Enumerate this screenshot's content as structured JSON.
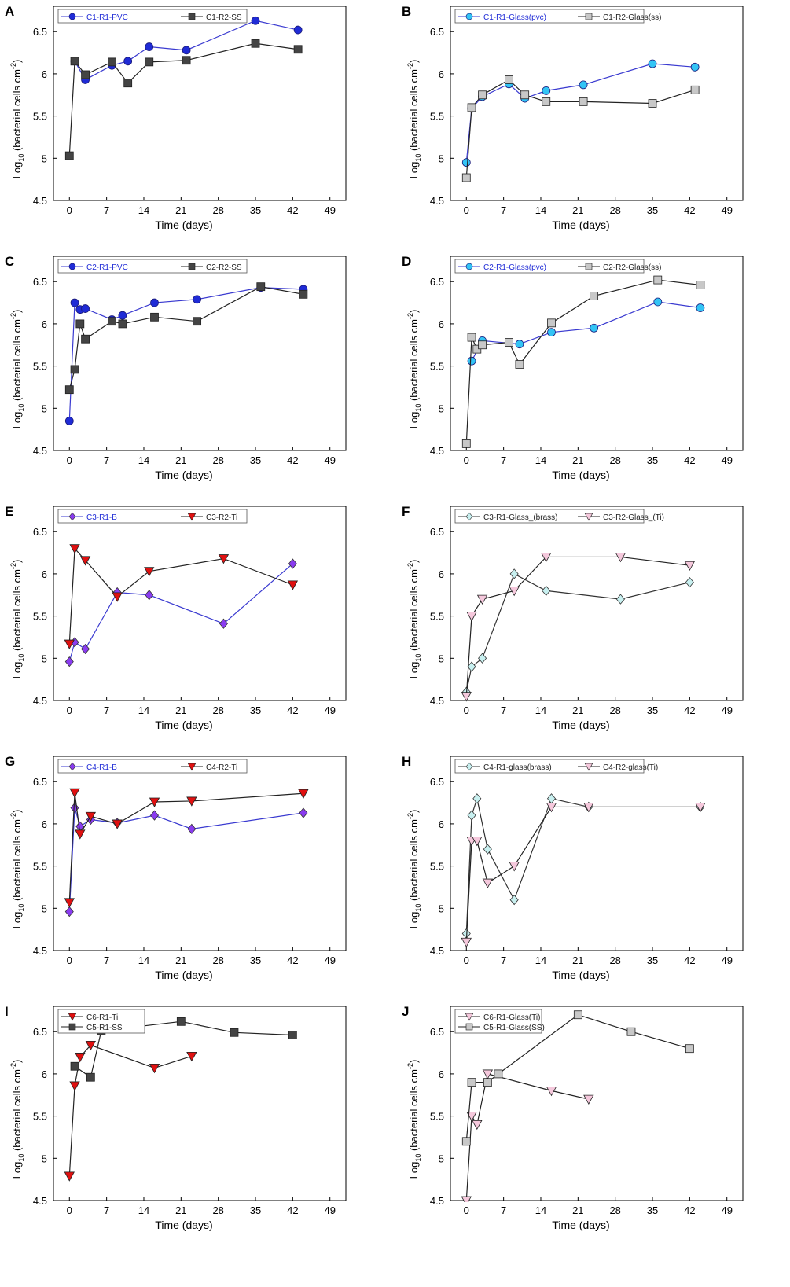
{
  "figure": {
    "axis_defaults": {
      "xlabel": "Time (days)",
      "ylabel_prefix": "Log",
      "ylabel_sub": "10",
      "ylabel_main": " (bacterial cells cm",
      "ylabel_sup": "-2",
      "ylabel_end": ")",
      "xlim": [
        -3,
        52
      ],
      "ylim": [
        4.5,
        6.8
      ],
      "xticks": [
        0,
        7,
        14,
        21,
        28,
        35,
        42,
        49
      ],
      "yticks": [
        4.5,
        5,
        5.5,
        6,
        6.5
      ]
    },
    "colors": {
      "blue_circle": "#1f2bd6",
      "dark_square": "#444444",
      "cyan_circle": "#33c4f5",
      "light_square": "#c8c8c8",
      "purple_diamond": "#8a3cf0",
      "red_triangle": "#e01010",
      "cyan_diamond": "#c8f0f0",
      "pink_triangle": "#f5c8dc",
      "line_blue": "#3a3ad0",
      "line_dark": "#222222"
    }
  },
  "chart_data": [
    {
      "panel": "A",
      "type": "line",
      "title": "",
      "xlabel": "Time (days)",
      "ylabel": "Log10 (bacterial cells cm-2)",
      "xlim": [
        -3,
        52
      ],
      "ylim": [
        4.5,
        6.8
      ],
      "legend_location": "top-left",
      "series": [
        {
          "name": "C1-R1-PVC",
          "marker": "circle",
          "fill": "#1f2bd6",
          "line": "#3a3ad0",
          "legend_color": "#1f2bd6",
          "x": [
            1,
            3,
            8,
            11,
            15,
            22,
            35,
            43
          ],
          "y": [
            6.15,
            5.93,
            6.1,
            6.15,
            6.32,
            6.28,
            6.63,
            6.52
          ]
        },
        {
          "name": "C1-R2-SS",
          "marker": "square",
          "fill": "#444444",
          "line": "#222222",
          "legend_color": "#222222",
          "x": [
            0,
            1,
            3,
            8,
            11,
            15,
            22,
            35,
            43
          ],
          "y": [
            5.03,
            6.15,
            5.99,
            6.14,
            5.89,
            6.14,
            6.16,
            6.36,
            6.29
          ]
        }
      ]
    },
    {
      "panel": "B",
      "type": "line",
      "title": "",
      "xlabel": "Time (days)",
      "ylabel": "Log10 (bacterial cells cm-2)",
      "xlim": [
        -3,
        52
      ],
      "ylim": [
        4.5,
        6.8
      ],
      "legend_location": "top-left",
      "series": [
        {
          "name": "C1-R1-Glass(pvc)",
          "marker": "circle",
          "fill": "#33c4f5",
          "line": "#3a3ad0",
          "legend_color": "#1f2bd6",
          "x": [
            0,
            1,
            3,
            8,
            11,
            15,
            22,
            35,
            43
          ],
          "y": [
            4.95,
            5.59,
            5.73,
            5.88,
            5.71,
            5.8,
            5.87,
            6.12,
            6.08
          ]
        },
        {
          "name": "C1-R2-Glass(ss)",
          "marker": "square",
          "fill": "#c8c8c8",
          "line": "#222222",
          "legend_color": "#222222",
          "x": [
            0,
            1,
            3,
            8,
            11,
            15,
            22,
            35,
            43
          ],
          "y": [
            4.77,
            5.6,
            5.75,
            5.93,
            5.75,
            5.67,
            5.67,
            5.65,
            5.81
          ]
        }
      ]
    },
    {
      "panel": "C",
      "type": "line",
      "title": "",
      "xlabel": "Time (days)",
      "ylabel": "Log10 (bacterial cells cm-2)",
      "xlim": [
        -3,
        52
      ],
      "ylim": [
        4.5,
        6.8
      ],
      "legend_location": "top-left",
      "series": [
        {
          "name": "C2-R1-PVC",
          "marker": "circle",
          "fill": "#1f2bd6",
          "line": "#3a3ad0",
          "legend_color": "#1f2bd6",
          "x": [
            0,
            1,
            2,
            3,
            8,
            10,
            16,
            24,
            36,
            44
          ],
          "y": [
            4.85,
            6.25,
            6.17,
            6.18,
            6.05,
            6.1,
            6.25,
            6.29,
            6.43,
            6.41
          ]
        },
        {
          "name": "C2-R2-SS",
          "marker": "square",
          "fill": "#444444",
          "line": "#222222",
          "legend_color": "#222222",
          "x": [
            0,
            1,
            2,
            3,
            8,
            10,
            16,
            24,
            36,
            44
          ],
          "y": [
            5.22,
            5.46,
            6.0,
            5.82,
            6.03,
            6.0,
            6.08,
            6.03,
            6.44,
            6.35
          ]
        }
      ]
    },
    {
      "panel": "D",
      "type": "line",
      "title": "",
      "xlabel": "Time (days)",
      "ylabel": "Log10 (bacterial cells cm-2)",
      "xlim": [
        -3,
        52
      ],
      "ylim": [
        4.5,
        6.8
      ],
      "legend_location": "top-left",
      "series": [
        {
          "name": "C2-R1-Glass(pvc)",
          "marker": "circle",
          "fill": "#33c4f5",
          "line": "#3a3ad0",
          "legend_color": "#1f2bd6",
          "x": [
            1,
            3,
            10,
            16,
            24,
            36,
            44
          ],
          "y": [
            5.56,
            5.8,
            5.76,
            5.9,
            5.95,
            6.26,
            6.19
          ]
        },
        {
          "name": "C2-R2-Glass(ss)",
          "marker": "square",
          "fill": "#c8c8c8",
          "line": "#222222",
          "legend_color": "#222222",
          "x": [
            0,
            1,
            2,
            3,
            8,
            10,
            16,
            24,
            36,
            44
          ],
          "y": [
            4.58,
            5.84,
            5.7,
            5.75,
            5.78,
            5.52,
            6.01,
            6.33,
            6.52,
            6.46
          ]
        }
      ]
    },
    {
      "panel": "E",
      "type": "line",
      "title": "",
      "xlabel": "Time (days)",
      "ylabel": "Log10 (bacterial cells cm-2)",
      "xlim": [
        -3,
        52
      ],
      "ylim": [
        4.5,
        6.8
      ],
      "legend_location": "top-left",
      "series": [
        {
          "name": "C3-R1-B",
          "marker": "diamond",
          "fill": "#8a3cf0",
          "line": "#3a3ad0",
          "legend_color": "#1f2bd6",
          "x": [
            0,
            1,
            3,
            9,
            15,
            29,
            42
          ],
          "y": [
            4.96,
            5.19,
            5.11,
            5.78,
            5.75,
            5.41,
            6.12
          ]
        },
        {
          "name": "C3-R2-Ti",
          "marker": "triangle-down",
          "fill": "#e01010",
          "line": "#222222",
          "legend_color": "#222222",
          "x": [
            0,
            1,
            3,
            9,
            15,
            29,
            42
          ],
          "y": [
            5.17,
            6.3,
            6.16,
            5.73,
            6.03,
            6.18,
            5.87
          ]
        }
      ]
    },
    {
      "panel": "F",
      "type": "line",
      "title": "",
      "xlabel": "Time (days)",
      "ylabel": "Log10 (bacterial cells cm-2)",
      "xlim": [
        -3,
        52
      ],
      "ylim": [
        4.5,
        6.8
      ],
      "legend_location": "top-left",
      "series": [
        {
          "name": "C3-R1-Glass_(brass)",
          "marker": "diamond",
          "fill": "#c8f0f0",
          "line": "#333333",
          "legend_color": "#222222",
          "x": [
            0,
            1,
            3,
            9,
            15,
            29,
            42
          ],
          "y": [
            4.6,
            4.9,
            5.0,
            6.0,
            5.8,
            5.7,
            5.9
          ]
        },
        {
          "name": "C3-R2-Glass_(Ti)",
          "marker": "triangle-down",
          "fill": "#f5c8dc",
          "line": "#222222",
          "legend_color": "#222222",
          "x": [
            0,
            1,
            3,
            9,
            15,
            29,
            42
          ],
          "y": [
            4.55,
            5.5,
            5.7,
            5.8,
            6.2,
            6.2,
            6.1
          ]
        }
      ]
    },
    {
      "panel": "G",
      "type": "line",
      "title": "",
      "xlabel": "Time (days)",
      "ylabel": "Log10 (bacterial cells cm-2)",
      "xlim": [
        -3,
        52
      ],
      "ylim": [
        4.5,
        6.8
      ],
      "legend_location": "top-left",
      "series": [
        {
          "name": "C4-R1-B",
          "marker": "diamond",
          "fill": "#8a3cf0",
          "line": "#3a3ad0",
          "legend_color": "#1f2bd6",
          "x": [
            0,
            1,
            2,
            4,
            9,
            16,
            23,
            44
          ],
          "y": [
            4.96,
            6.19,
            5.97,
            6.05,
            6.01,
            6.1,
            5.94,
            6.13
          ]
        },
        {
          "name": "C4-R2-Ti",
          "marker": "triangle-down",
          "fill": "#e01010",
          "line": "#222222",
          "legend_color": "#222222",
          "x": [
            0,
            1,
            2,
            4,
            9,
            16,
            23,
            44
          ],
          "y": [
            5.07,
            6.37,
            5.88,
            6.09,
            6.0,
            6.26,
            6.27,
            6.36
          ]
        }
      ]
    },
    {
      "panel": "H",
      "type": "line",
      "title": "",
      "xlabel": "Time (days)",
      "ylabel": "Log10 (bacterial cells cm-2)",
      "xlim": [
        -3,
        52
      ],
      "ylim": [
        4.5,
        6.8
      ],
      "legend_location": "top-left",
      "series": [
        {
          "name": "C4-R1-glass(brass)",
          "marker": "diamond",
          "fill": "#c8f0f0",
          "line": "#333333",
          "legend_color": "#222222",
          "x": [
            0,
            1,
            2,
            4,
            9,
            16,
            23,
            44
          ],
          "y": [
            4.7,
            6.1,
            6.3,
            5.7,
            5.1,
            6.3,
            6.2,
            6.2
          ]
        },
        {
          "name": "C4-R2-glass(Ti)",
          "marker": "triangle-down",
          "fill": "#f5c8dc",
          "line": "#222222",
          "legend_color": "#222222",
          "x": [
            0,
            1,
            2,
            4,
            9,
            16,
            23,
            44
          ],
          "y": [
            4.6,
            5.8,
            5.8,
            5.3,
            5.5,
            6.2,
            6.2,
            6.2
          ]
        }
      ]
    },
    {
      "panel": "I",
      "type": "line",
      "title": "",
      "xlabel": "Time (days)",
      "ylabel": "Log10 (bacterial cells cm-2)",
      "xlim": [
        -3,
        52
      ],
      "ylim": [
        4.5,
        6.8
      ],
      "legend_location": "top-left",
      "series": [
        {
          "name": "C6-R1-Ti",
          "marker": "triangle-down",
          "fill": "#e01010",
          "line": "#222222",
          "legend_color": "#222222",
          "x": [
            0,
            1,
            2,
            4,
            16,
            23
          ],
          "y": [
            4.79,
            5.86,
            6.2,
            6.34,
            6.07,
            6.21
          ]
        },
        {
          "name": "C5-R1-SS",
          "marker": "square",
          "fill": "#444444",
          "line": "#222222",
          "legend_color": "#222222",
          "x": [
            1,
            4,
            6,
            21,
            31,
            42
          ],
          "y": [
            6.09,
            5.96,
            6.51,
            6.62,
            6.49,
            6.46
          ]
        }
      ]
    },
    {
      "panel": "J",
      "type": "line",
      "title": "",
      "xlabel": "Time (days)",
      "ylabel": "Log10 (bacterial cells cm-2)",
      "xlim": [
        -3,
        52
      ],
      "ylim": [
        4.5,
        6.8
      ],
      "legend_location": "top-left",
      "series": [
        {
          "name": "C6-R1-Glass(Ti)",
          "marker": "triangle-down",
          "fill": "#f5c8dc",
          "line": "#222222",
          "legend_color": "#222222",
          "x": [
            0,
            1,
            2,
            4,
            16,
            23
          ],
          "y": [
            4.5,
            5.5,
            5.4,
            6.0,
            5.8,
            5.7
          ]
        },
        {
          "name": "C5-R1-Glass(SS)",
          "marker": "square",
          "fill": "#c8c8c8",
          "line": "#222222",
          "legend_color": "#222222",
          "x": [
            0,
            1,
            4,
            6,
            21,
            31,
            42
          ],
          "y": [
            5.2,
            5.9,
            5.9,
            6.0,
            6.7,
            6.5,
            6.3
          ]
        }
      ]
    }
  ]
}
